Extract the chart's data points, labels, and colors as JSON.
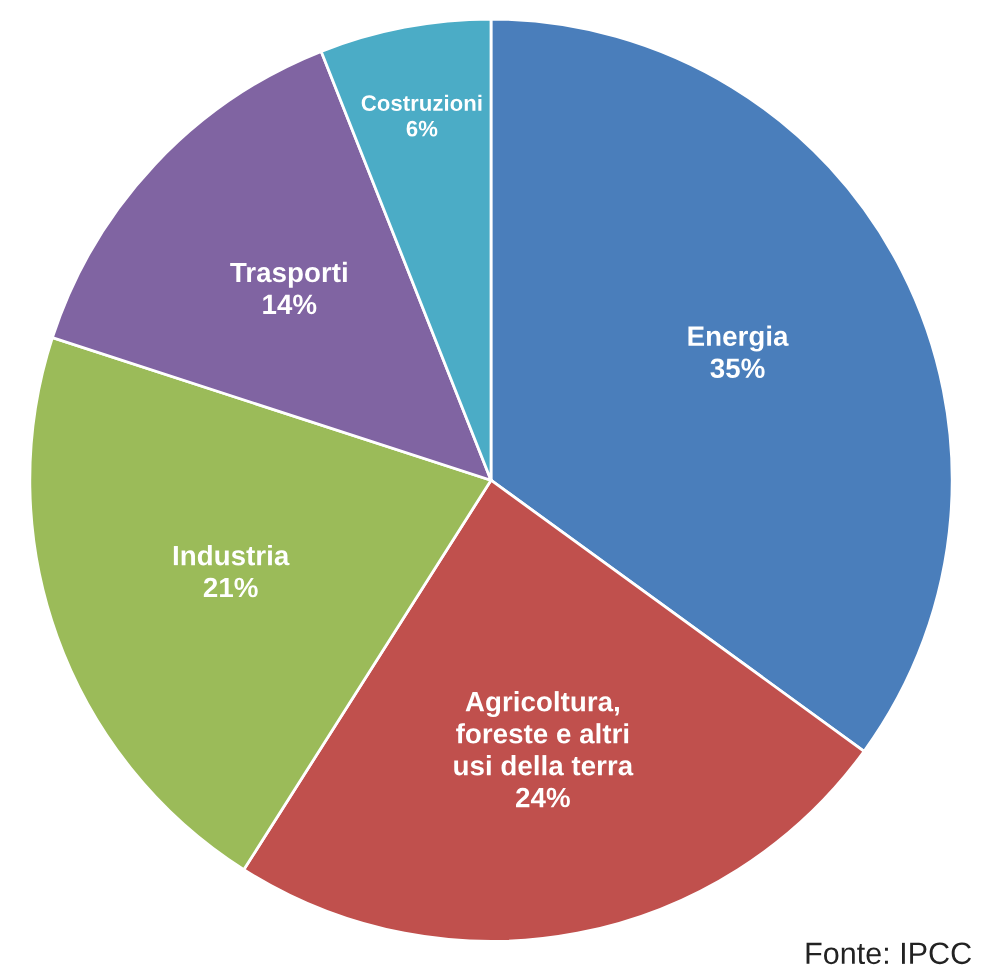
{
  "chart_data": {
    "type": "pie",
    "categories": [
      "Energia",
      "Agricoltura,\nforeste e altri\nusi della terra",
      "Industria",
      "Trasporti",
      "Costruzioni"
    ],
    "values": [
      35,
      24,
      21,
      14,
      6
    ],
    "value_labels": [
      "35%",
      "24%",
      "21%",
      "14%",
      "6%"
    ],
    "colors": [
      "#4a7ebb",
      "#c0504d",
      "#9bbb59",
      "#8064a2",
      "#4bacc6"
    ],
    "annotations": [
      "Fonte: IPCC"
    ]
  }
}
